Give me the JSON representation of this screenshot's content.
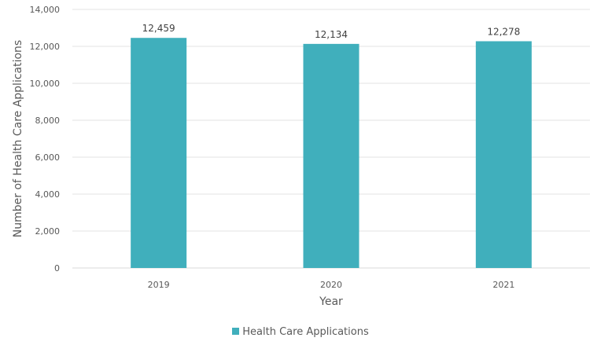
{
  "chart_data": {
    "type": "bar",
    "categories": [
      "2019",
      "2020",
      "2021"
    ],
    "series": [
      {
        "name": "Health Care Applications",
        "values": [
          12459,
          12134,
          12278
        ],
        "color": "#40AFBC"
      }
    ],
    "data_labels": [
      "12,459",
      "12,134",
      "12,278"
    ],
    "y_ticks": [
      "0",
      "2,000",
      "4,000",
      "6,000",
      "8,000",
      "10,000",
      "12,000",
      "14,000"
    ],
    "title": "",
    "xlabel": "Year",
    "ylabel": "Number of Health Care Applications",
    "ylim": [
      0,
      14000
    ],
    "ytick_step": 2000,
    "grid": true,
    "legend_position": "bottom"
  }
}
